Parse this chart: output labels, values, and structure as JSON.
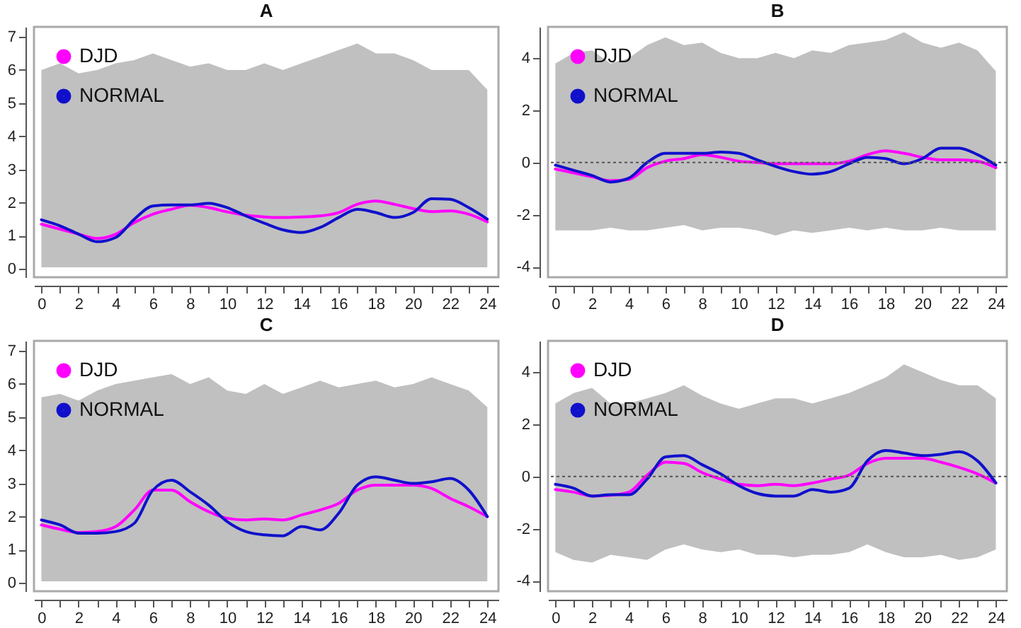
{
  "chart_data": [
    {
      "type": "line",
      "title": "A",
      "x": [
        0,
        1,
        2,
        3,
        4,
        5,
        6,
        7,
        8,
        9,
        10,
        11,
        12,
        13,
        14,
        15,
        16,
        17,
        18,
        19,
        20,
        21,
        22,
        23,
        24
      ],
      "xlim": [
        -0.4,
        24.6
      ],
      "xticks": [
        0,
        {
          "value": 1,
          "label": null
        },
        2,
        {
          "value": 3,
          "label": null
        },
        4,
        {
          "value": 5,
          "label": null
        },
        6,
        {
          "value": 7,
          "label": null
        },
        8,
        {
          "value": 9,
          "label": null
        },
        10,
        {
          "value": 11,
          "label": null
        },
        12,
        {
          "value": 13,
          "label": null
        },
        14,
        {
          "value": 15,
          "label": null
        },
        16,
        {
          "value": 17,
          "label": null
        },
        18,
        {
          "value": 19,
          "label": null
        },
        20,
        {
          "value": 21,
          "label": null
        },
        22,
        {
          "value": 23,
          "label": null
        },
        24
      ],
      "ylim": [
        -0.25,
        7.3
      ],
      "yticks": [
        0,
        1,
        2,
        3,
        4,
        5,
        6,
        7
      ],
      "legend": "top left",
      "marker": "none",
      "line_style": "solid",
      "grid": false,
      "series": [
        {
          "type": "area",
          "color": "#c0c0c0",
          "values": [
            null,
            null,
            null,
            null,
            null,
            null,
            null,
            null,
            null,
            null,
            null,
            null,
            null,
            null,
            null,
            null,
            null,
            null,
            null,
            null,
            null,
            null,
            null,
            null,
            null
          ],
          "lower": [
            0.05,
            0.05,
            0.05,
            0.05,
            0.05,
            0.05,
            0.05,
            0.05,
            0.05,
            0.05,
            0.05,
            0.05,
            0.05,
            0.05,
            0.05,
            0.05,
            0.05,
            0.05,
            0.05,
            0.05,
            0.05,
            0.05,
            0.05,
            0.05,
            0.05
          ],
          "upper": [
            6.0,
            6.2,
            5.9,
            6.0,
            6.2,
            6.3,
            6.5,
            6.3,
            6.1,
            6.2,
            6.0,
            6.0,
            6.2,
            6.0,
            6.2,
            6.4,
            6.6,
            6.8,
            6.5,
            6.5,
            6.3,
            6.0,
            6.0,
            6.0,
            5.4
          ]
        },
        {
          "name": "DJD",
          "color": "#ff00ff",
          "values": [
            1.35,
            1.2,
            1.05,
            0.92,
            1.05,
            1.4,
            1.65,
            1.8,
            1.92,
            1.85,
            1.72,
            1.62,
            1.57,
            1.55,
            1.57,
            1.6,
            1.7,
            1.95,
            2.05,
            1.95,
            1.82,
            1.73,
            1.75,
            1.65,
            1.42
          ]
        },
        {
          "name": "NORMAL",
          "color": "#1010cc",
          "values": [
            1.48,
            1.3,
            1.05,
            0.82,
            0.95,
            1.5,
            1.9,
            1.93,
            1.93,
            1.98,
            1.85,
            1.6,
            1.38,
            1.18,
            1.1,
            1.25,
            1.55,
            1.8,
            1.7,
            1.55,
            1.7,
            2.12,
            2.1,
            1.85,
            1.5
          ]
        }
      ]
    },
    {
      "type": "line",
      "title": "B",
      "x": [
        0,
        1,
        2,
        3,
        4,
        5,
        6,
        7,
        8,
        9,
        10,
        11,
        12,
        13,
        14,
        15,
        16,
        17,
        18,
        19,
        20,
        21,
        22,
        23,
        24
      ],
      "xlim": [
        -0.4,
        24.6
      ],
      "xticks": [
        0,
        {
          "value": 1,
          "label": null
        },
        2,
        {
          "value": 3,
          "label": null
        },
        4,
        {
          "value": 5,
          "label": null
        },
        6,
        {
          "value": 7,
          "label": null
        },
        8,
        {
          "value": 9,
          "label": null
        },
        10,
        {
          "value": 11,
          "label": null
        },
        12,
        {
          "value": 13,
          "label": null
        },
        14,
        {
          "value": 15,
          "label": null
        },
        16,
        {
          "value": 17,
          "label": null
        },
        18,
        {
          "value": 19,
          "label": null
        },
        20,
        {
          "value": 21,
          "label": null
        },
        22,
        {
          "value": 23,
          "label": null
        },
        24
      ],
      "ylim": [
        -4.4,
        5.2
      ],
      "yticks": [
        -4,
        -2,
        0,
        2,
        4
      ],
      "legend": "top left",
      "marker": "none",
      "line_style": "solid",
      "grid": false,
      "ref_lines": [
        {
          "axis": "y",
          "value": 0,
          "color": "#555555",
          "line_style": "dotted"
        }
      ],
      "series": [
        {
          "type": "area",
          "color": "#c0c0c0",
          "values": [
            null,
            null,
            null,
            null,
            null,
            null,
            null,
            null,
            null,
            null,
            null,
            null,
            null,
            null,
            null,
            null,
            null,
            null,
            null,
            null,
            null,
            null,
            null,
            null,
            null
          ],
          "lower": [
            -2.6,
            -2.6,
            -2.6,
            -2.5,
            -2.6,
            -2.6,
            -2.5,
            -2.4,
            -2.6,
            -2.5,
            -2.5,
            -2.6,
            -2.8,
            -2.6,
            -2.7,
            -2.6,
            -2.5,
            -2.6,
            -2.5,
            -2.6,
            -2.6,
            -2.5,
            -2.6,
            -2.6,
            -2.6
          ],
          "upper": [
            3.8,
            4.2,
            4.3,
            3.8,
            4.0,
            4.5,
            4.8,
            4.5,
            4.6,
            4.2,
            4.0,
            4.0,
            4.2,
            4.0,
            4.3,
            4.2,
            4.5,
            4.6,
            4.7,
            5.0,
            4.6,
            4.4,
            4.6,
            4.3,
            3.5
          ]
        },
        {
          "name": "DJD",
          "color": "#ff00ff",
          "values": [
            -0.25,
            -0.4,
            -0.55,
            -0.7,
            -0.65,
            -0.2,
            0.05,
            0.15,
            0.3,
            0.2,
            0.05,
            0,
            -0.05,
            -0.05,
            -0.05,
            -0.05,
            0.05,
            0.3,
            0.45,
            0.35,
            0.2,
            0.1,
            0.1,
            0.05,
            -0.2
          ]
        },
        {
          "name": "NORMAL",
          "color": "#1010cc",
          "values": [
            -0.1,
            -0.3,
            -0.5,
            -0.75,
            -0.6,
            0,
            0.35,
            0.35,
            0.35,
            0.4,
            0.35,
            0.1,
            -0.15,
            -0.35,
            -0.45,
            -0.35,
            -0.05,
            0.2,
            0.15,
            -0.05,
            0.15,
            0.55,
            0.55,
            0.3,
            -0.1
          ]
        }
      ]
    },
    {
      "type": "line",
      "title": "C",
      "x": [
        0,
        1,
        2,
        3,
        4,
        5,
        6,
        7,
        8,
        9,
        10,
        11,
        12,
        13,
        14,
        15,
        16,
        17,
        18,
        19,
        20,
        21,
        22,
        23,
        24
      ],
      "xlim": [
        -0.4,
        24.6
      ],
      "xticks": [
        0,
        {
          "value": 1,
          "label": null
        },
        2,
        {
          "value": 3,
          "label": null
        },
        4,
        {
          "value": 5,
          "label": null
        },
        6,
        {
          "value": 7,
          "label": null
        },
        8,
        {
          "value": 9,
          "label": null
        },
        10,
        {
          "value": 11,
          "label": null
        },
        12,
        {
          "value": 13,
          "label": null
        },
        14,
        {
          "value": 15,
          "label": null
        },
        16,
        {
          "value": 17,
          "label": null
        },
        18,
        {
          "value": 19,
          "label": null
        },
        20,
        {
          "value": 21,
          "label": null
        },
        22,
        {
          "value": 23,
          "label": null
        },
        24
      ],
      "ylim": [
        -0.25,
        7.3
      ],
      "yticks": [
        0,
        1,
        2,
        3,
        4,
        5,
        6,
        7
      ],
      "legend": "top left",
      "marker": "none",
      "line_style": "solid",
      "grid": false,
      "series": [
        {
          "type": "area",
          "color": "#c0c0c0",
          "values": [
            null,
            null,
            null,
            null,
            null,
            null,
            null,
            null,
            null,
            null,
            null,
            null,
            null,
            null,
            null,
            null,
            null,
            null,
            null,
            null,
            null,
            null,
            null,
            null,
            null
          ],
          "lower": [
            0.05,
            0.05,
            0.05,
            0.05,
            0.05,
            0.05,
            0.05,
            0.05,
            0.05,
            0.05,
            0.05,
            0.05,
            0.05,
            0.05,
            0.05,
            0.05,
            0.05,
            0.05,
            0.05,
            0.05,
            0.05,
            0.05,
            0.05,
            0.05,
            0.05
          ],
          "upper": [
            5.6,
            5.7,
            5.5,
            5.8,
            6.0,
            6.1,
            6.2,
            6.3,
            6.0,
            6.2,
            5.8,
            5.7,
            6.0,
            5.7,
            5.9,
            6.1,
            5.9,
            6.0,
            6.1,
            5.9,
            6.0,
            6.2,
            6.0,
            5.8,
            5.3
          ]
        },
        {
          "name": "DJD",
          "color": "#ff00ff",
          "values": [
            1.75,
            1.62,
            1.52,
            1.55,
            1.7,
            2.2,
            2.8,
            2.8,
            2.45,
            2.15,
            1.95,
            1.9,
            1.93,
            1.9,
            2.05,
            2.2,
            2.4,
            2.8,
            2.95,
            2.95,
            2.95,
            2.85,
            2.55,
            2.3,
            2.0
          ]
        },
        {
          "name": "NORMAL",
          "color": "#1010cc",
          "values": [
            1.9,
            1.75,
            1.5,
            1.5,
            1.55,
            1.8,
            2.8,
            3.1,
            2.75,
            2.35,
            1.85,
            1.55,
            1.45,
            1.42,
            1.7,
            1.6,
            2.1,
            2.95,
            3.2,
            3.1,
            3.0,
            3.05,
            3.15,
            2.8,
            2.0
          ]
        }
      ]
    },
    {
      "type": "line",
      "title": "D",
      "x": [
        0,
        1,
        2,
        3,
        4,
        5,
        6,
        7,
        8,
        9,
        10,
        11,
        12,
        13,
        14,
        15,
        16,
        17,
        18,
        19,
        20,
        21,
        22,
        23,
        24
      ],
      "xlim": [
        -0.4,
        24.6
      ],
      "xticks": [
        0,
        {
          "value": 1,
          "label": null
        },
        2,
        {
          "value": 3,
          "label": null
        },
        4,
        {
          "value": 5,
          "label": null
        },
        6,
        {
          "value": 7,
          "label": null
        },
        8,
        {
          "value": 9,
          "label": null
        },
        10,
        {
          "value": 11,
          "label": null
        },
        12,
        {
          "value": 13,
          "label": null
        },
        14,
        {
          "value": 15,
          "label": null
        },
        16,
        {
          "value": 17,
          "label": null
        },
        18,
        {
          "value": 19,
          "label": null
        },
        20,
        {
          "value": 21,
          "label": null
        },
        22,
        {
          "value": 23,
          "label": null
        },
        24
      ],
      "ylim": [
        -4.4,
        5.2
      ],
      "yticks": [
        -4,
        -2,
        0,
        2,
        4
      ],
      "legend": "top left",
      "marker": "none",
      "line_style": "solid",
      "grid": false,
      "ref_lines": [
        {
          "axis": "y",
          "value": 0,
          "color": "#555555",
          "line_style": "dotted"
        }
      ],
      "series": [
        {
          "type": "area",
          "color": "#c0c0c0",
          "values": [
            null,
            null,
            null,
            null,
            null,
            null,
            null,
            null,
            null,
            null,
            null,
            null,
            null,
            null,
            null,
            null,
            null,
            null,
            null,
            null,
            null,
            null,
            null,
            null,
            null
          ],
          "lower": [
            -2.9,
            -3.2,
            -3.3,
            -3.0,
            -3.1,
            -3.2,
            -2.8,
            -2.6,
            -2.8,
            -2.9,
            -2.8,
            -3.0,
            -3.0,
            -3.1,
            -3.0,
            -3.0,
            -2.9,
            -2.6,
            -2.9,
            -3.1,
            -3.1,
            -3.0,
            -3.2,
            -3.1,
            -2.8
          ],
          "upper": [
            2.8,
            3.2,
            3.4,
            2.8,
            2.8,
            3.0,
            3.2,
            3.5,
            3.1,
            2.8,
            2.6,
            2.8,
            3.0,
            3.0,
            2.8,
            3.0,
            3.2,
            3.5,
            3.8,
            4.3,
            4.0,
            3.7,
            3.5,
            3.5,
            3.0
          ]
        },
        {
          "name": "DJD",
          "color": "#ff00ff",
          "values": [
            -0.5,
            -0.6,
            -0.75,
            -0.72,
            -0.6,
            0.05,
            0.55,
            0.5,
            0.15,
            -0.1,
            -0.3,
            -0.35,
            -0.3,
            -0.35,
            -0.25,
            -0.1,
            0.05,
            0.5,
            0.7,
            0.7,
            0.7,
            0.55,
            0.35,
            0.1,
            -0.25
          ]
        },
        {
          "name": "NORMAL",
          "color": "#1010cc",
          "values": [
            -0.3,
            -0.45,
            -0.75,
            -0.7,
            -0.7,
            -0.1,
            0.75,
            0.8,
            0.45,
            0.1,
            -0.35,
            -0.65,
            -0.75,
            -0.75,
            -0.5,
            -0.6,
            -0.45,
            0.6,
            1.0,
            0.9,
            0.8,
            0.85,
            0.95,
            0.6,
            -0.25
          ]
        }
      ]
    }
  ]
}
